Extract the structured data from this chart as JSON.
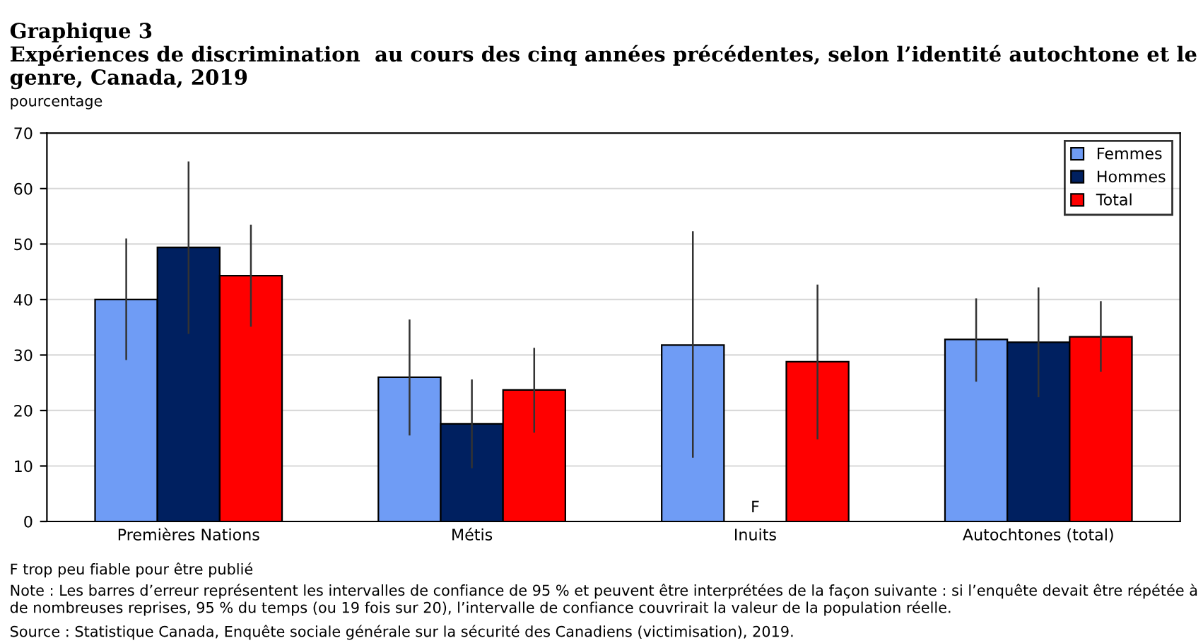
{
  "chart_data": {
    "type": "bar",
    "title": "Graphique 3",
    "subtitle": "Expériences de discrimination  au cours des cinq années précédentes, selon l’identité autochtone et le genre, Canada, 2019",
    "ylabel": "pourcentage",
    "categories": [
      "Premières Nations",
      "Métis",
      "Inuits",
      "Autochtones (total)"
    ],
    "series": [
      {
        "name": "Femmes",
        "color": "#6f9cf5",
        "values": [
          40.0,
          26.0,
          31.8,
          32.8
        ],
        "errors": [
          [
            29.1,
            51.0
          ],
          [
            15.5,
            36.4
          ],
          [
            11.5,
            52.3
          ],
          [
            25.2,
            40.2
          ]
        ]
      },
      {
        "name": "Hommes",
        "color": "#002060",
        "values": [
          49.4,
          17.6,
          null,
          32.3
        ],
        "errors": [
          [
            33.8,
            64.9
          ],
          [
            9.6,
            25.6
          ],
          null,
          [
            22.4,
            42.2
          ]
        ]
      },
      {
        "name": "Total",
        "color": "#ff0000",
        "values": [
          44.3,
          23.7,
          28.8,
          33.3
        ],
        "errors": [
          [
            35.1,
            53.5
          ],
          [
            16.0,
            31.3
          ],
          [
            14.8,
            42.7
          ],
          [
            27.0,
            39.7
          ]
        ]
      }
    ],
    "annotations": [
      "F",
      "F trop peu fiable pour être publié",
      "Note : Les barres d’erreur représentent les intervalles de confiance de 95 % et peuvent être interprétées de la façon suivante : si l’enquête devait être répétée à de nombreuses reprises, 95 % du temps (ou 19 fois sur 20), l’intervalle de confiance couvrirait la valeur de la population réelle.",
      "Source : Statistique Canada, Enquête sociale générale sur la sécurité des Canadiens (victimisation), 2019."
    ],
    "ylim": [
      0,
      70
    ],
    "yticks": [
      0,
      10,
      20,
      30,
      40,
      50,
      60,
      70
    ],
    "grid": "y",
    "legend": "top right"
  }
}
